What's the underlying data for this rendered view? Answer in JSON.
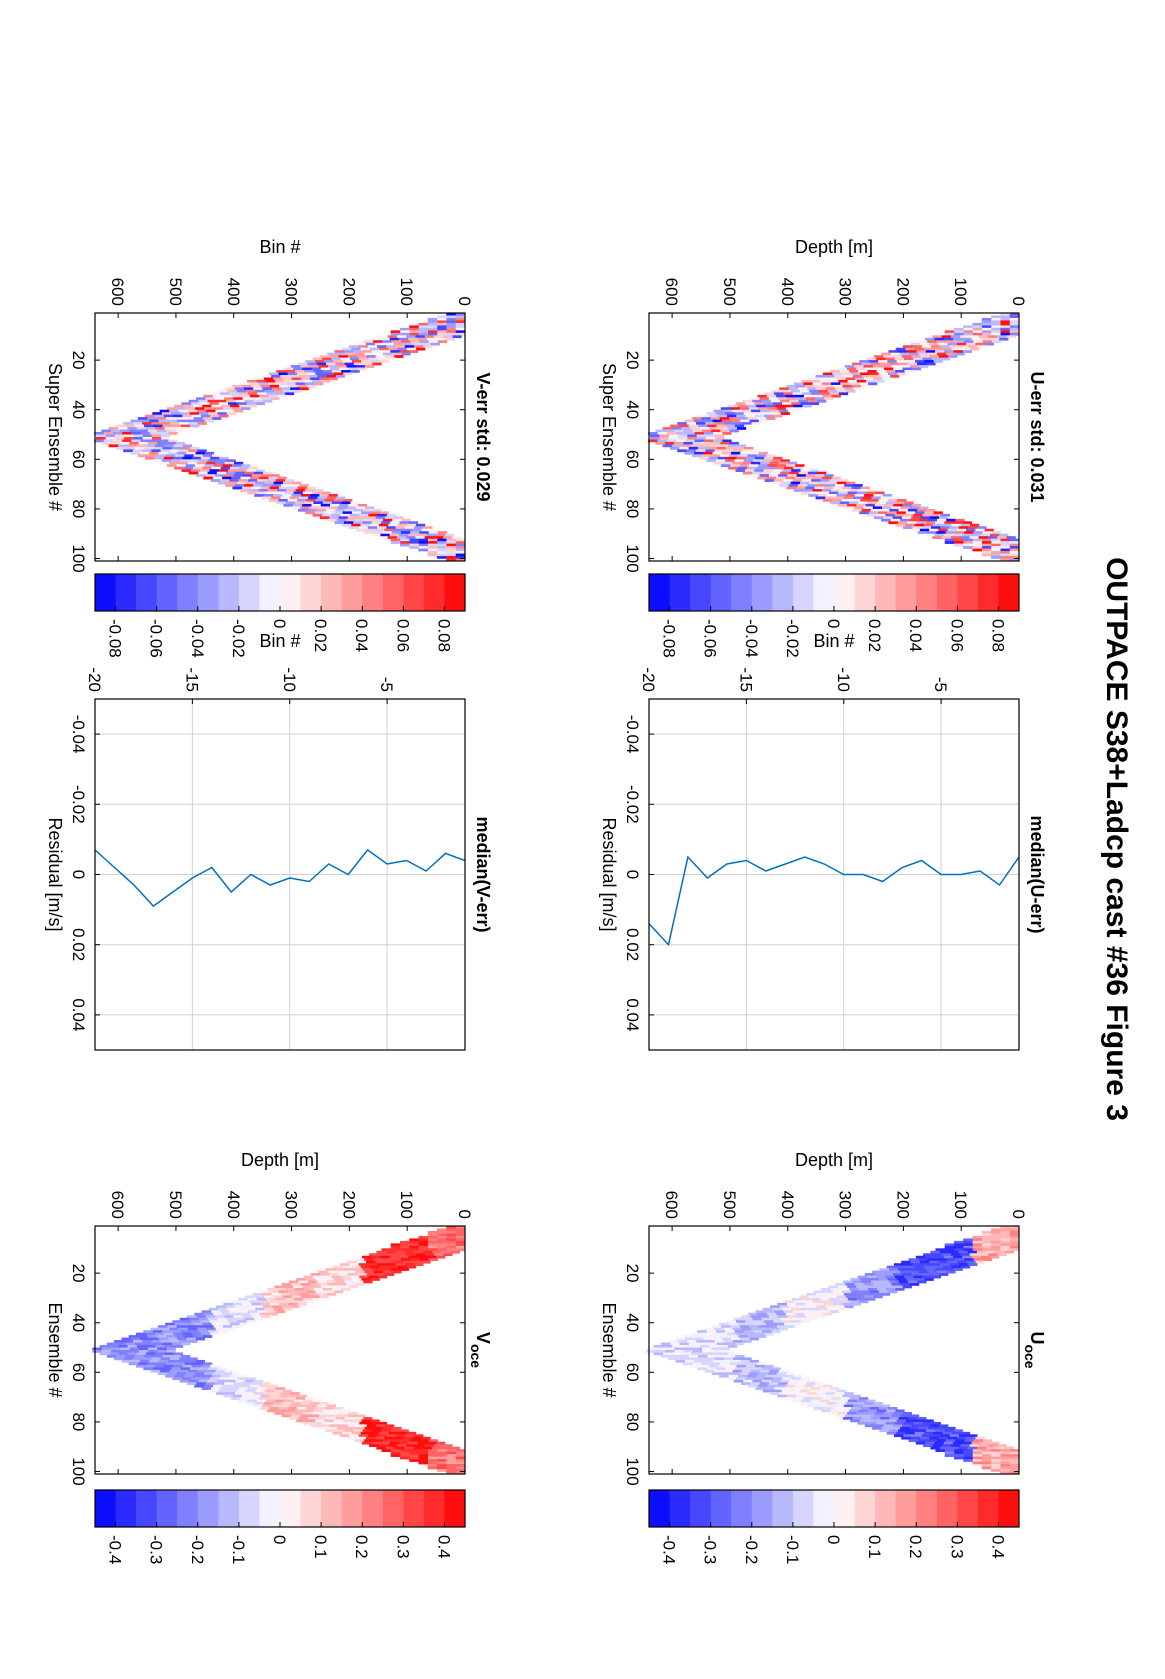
{
  "figure": {
    "title": "OUTPACE S38+Ladcp cast #36  Figure 3"
  },
  "chart_data": [
    {
      "id": "u_err",
      "type": "heatmap",
      "title": "U-err std: 0.031",
      "xlabel": "Super Ensemble #",
      "ylabel": "Depth [m]",
      "xlim": [
        1,
        101
      ],
      "ylim": [
        0,
        640
      ],
      "y_reversed": true,
      "xticks": [
        20,
        40,
        60,
        80,
        100
      ],
      "yticks": [
        0,
        100,
        200,
        300,
        400,
        500,
        600
      ],
      "grid": false,
      "turn_ensemble": 51,
      "max_depth": 630,
      "band_width_m": 120,
      "amplitude": 0.08,
      "seed": 11,
      "style": "noise"
    },
    {
      "id": "u_err_cbar",
      "type": "colorbar",
      "clim": [
        -0.09,
        0.09
      ],
      "levels": 18,
      "ticks": [
        -0.08,
        -0.06,
        -0.04,
        -0.02,
        0,
        0.02,
        0.04,
        0.06,
        0.08
      ],
      "tick_labels": [
        "-0.08",
        "-0.06",
        "-0.04",
        "-0.02",
        "0",
        "0.02",
        "0.04",
        "0.06",
        "0.08"
      ]
    },
    {
      "id": "median_u",
      "type": "line",
      "title": "median(U-err)",
      "xlabel": "Residual [m/s]",
      "ylabel": "Bin #",
      "xlim": [
        -0.05,
        0.05
      ],
      "ylim": [
        -20,
        -1
      ],
      "xticks": [
        -0.04,
        -0.02,
        0,
        0.02,
        0.04
      ],
      "xtick_labels": [
        "-0.04",
        "-0.02",
        "0",
        "0.02",
        "0.04"
      ],
      "yticks": [
        -5,
        -10,
        -15,
        -20
      ],
      "ytick_labels": [
        "-5",
        "-10",
        "-15",
        "-20"
      ],
      "grid": true,
      "series": [
        {
          "x": [
            0.014,
            0.02,
            -0.005,
            0.001,
            -0.003,
            -0.004,
            -0.001,
            -0.003,
            -0.005,
            -0.003,
            0.0,
            0.0,
            0.002,
            -0.002,
            -0.004,
            0.0,
            0.0,
            -0.001,
            0.003,
            -0.005
          ],
          "y": [
            -20,
            -19,
            -18,
            -17,
            -16,
            -15,
            -14,
            -13,
            -12,
            -11,
            -10,
            -9,
            -8,
            -7,
            -6,
            -5,
            -4,
            -3,
            -2,
            -1
          ]
        }
      ]
    },
    {
      "id": "u_oce",
      "type": "heatmap",
      "title": "U",
      "title_subscript": "oce",
      "xlabel": "Ensemble #",
      "ylabel": "Depth [m]",
      "xlim": [
        1,
        101
      ],
      "ylim": [
        0,
        640
      ],
      "y_reversed": true,
      "xticks": [
        20,
        40,
        60,
        80,
        100
      ],
      "yticks": [
        0,
        100,
        200,
        300,
        400,
        500,
        600
      ],
      "grid": false,
      "turn_ensemble": 51,
      "max_depth": 630,
      "band_width_m": 130,
      "amplitude": 0.4,
      "seed": 23,
      "style": "ocean_u"
    },
    {
      "id": "u_oce_cbar",
      "type": "colorbar",
      "clim": [
        -0.45,
        0.45
      ],
      "levels": 18,
      "ticks": [
        -0.4,
        -0.3,
        -0.2,
        -0.1,
        0,
        0.1,
        0.2,
        0.3,
        0.4
      ],
      "tick_labels": [
        "-0.4",
        "-0.3",
        "-0.2",
        "-0.1",
        "0",
        "0.1",
        "0.2",
        "0.3",
        "0.4"
      ]
    },
    {
      "id": "v_err",
      "type": "heatmap",
      "title": "V-err std: 0.029",
      "xlabel": "Super Ensemble #",
      "ylabel": "Bin #",
      "xlim": [
        1,
        101
      ],
      "ylim": [
        0,
        640
      ],
      "y_reversed": true,
      "xticks": [
        20,
        40,
        60,
        80,
        100
      ],
      "yticks": [
        0,
        100,
        200,
        300,
        400,
        500,
        600
      ],
      "grid": false,
      "turn_ensemble": 51,
      "max_depth": 630,
      "band_width_m": 120,
      "amplitude": 0.08,
      "seed": 37,
      "style": "noise"
    },
    {
      "id": "v_err_cbar",
      "type": "colorbar",
      "clim": [
        -0.09,
        0.09
      ],
      "levels": 18,
      "ticks": [
        -0.08,
        -0.06,
        -0.04,
        -0.02,
        0,
        0.02,
        0.04,
        0.06,
        0.08
      ],
      "tick_labels": [
        "-0.08",
        "-0.06",
        "-0.04",
        "-0.02",
        "0",
        "0.02",
        "0.04",
        "0.06",
        "0.08"
      ]
    },
    {
      "id": "median_v",
      "type": "line",
      "title": "median(V-err)",
      "xlabel": "Residual [m/s]",
      "ylabel": "Bin #",
      "xlim": [
        -0.05,
        0.05
      ],
      "ylim": [
        -20,
        -1
      ],
      "xticks": [
        -0.04,
        -0.02,
        0,
        0.02,
        0.04
      ],
      "xtick_labels": [
        "-0.04",
        "-0.02",
        "0",
        "0.02",
        "0.04"
      ],
      "yticks": [
        -5,
        -10,
        -15,
        -20
      ],
      "ytick_labels": [
        "-5",
        "-10",
        "-15",
        "-20"
      ],
      "grid": true,
      "series": [
        {
          "x": [
            -0.007,
            -0.002,
            0.003,
            0.009,
            0.005,
            0.001,
            -0.002,
            0.005,
            0.0,
            0.003,
            0.001,
            0.002,
            -0.003,
            0.0,
            -0.007,
            -0.003,
            -0.004,
            -0.001,
            -0.006,
            -0.004,
            0.013
          ],
          "y": [
            -20,
            -19,
            -18,
            -17,
            -16,
            -15,
            -14,
            -13,
            -12,
            -11,
            -10,
            -9,
            -8,
            -7,
            -6,
            -5,
            -4,
            -3,
            -2,
            -1,
            0
          ]
        }
      ]
    },
    {
      "id": "v_oce",
      "type": "heatmap",
      "title": "V",
      "title_subscript": "oce",
      "xlabel": "Ensemble #",
      "ylabel": "Depth [m]",
      "xlim": [
        1,
        101
      ],
      "ylim": [
        0,
        640
      ],
      "y_reversed": true,
      "xticks": [
        20,
        40,
        60,
        80,
        100
      ],
      "yticks": [
        0,
        100,
        200,
        300,
        400,
        500,
        600
      ],
      "grid": false,
      "turn_ensemble": 51,
      "max_depth": 630,
      "band_width_m": 130,
      "amplitude": 0.4,
      "seed": 51,
      "style": "ocean_v"
    },
    {
      "id": "v_oce_cbar",
      "type": "colorbar",
      "clim": [
        -0.45,
        0.45
      ],
      "levels": 18,
      "ticks": [
        -0.4,
        -0.3,
        -0.2,
        -0.1,
        0,
        0.1,
        0.2,
        0.3,
        0.4
      ],
      "tick_labels": [
        "-0.4",
        "-0.3",
        "-0.2",
        "-0.1",
        "0",
        "0.1",
        "0.2",
        "0.3",
        "0.4"
      ]
    }
  ],
  "colors": {
    "line": "#0072bd",
    "grid": "#d0d0d0",
    "red": "#ff0000",
    "blue": "#0000ff"
  }
}
